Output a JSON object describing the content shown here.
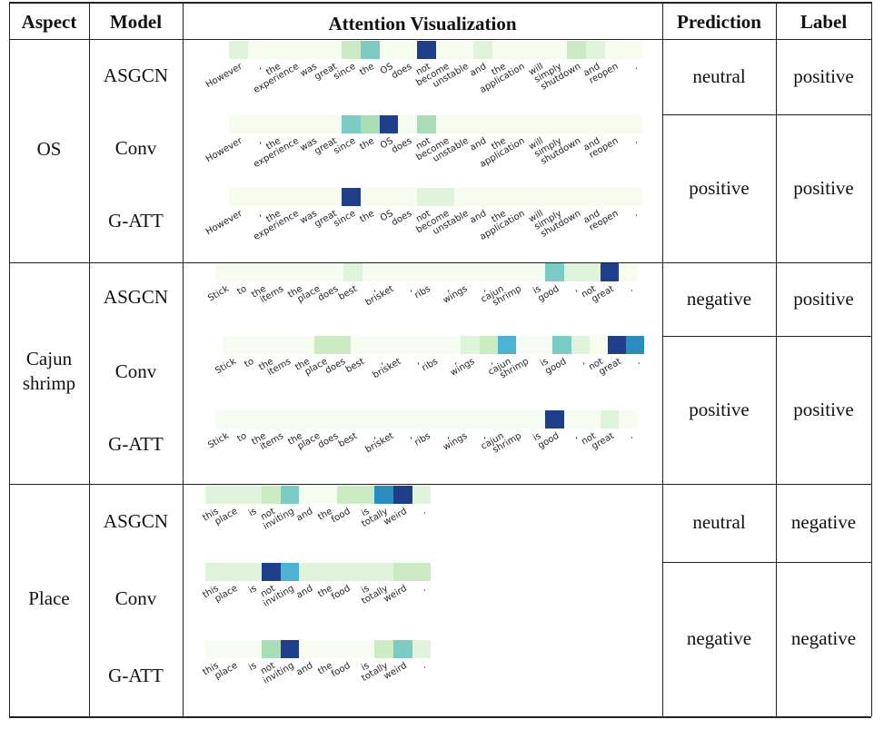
{
  "headers": {
    "aspect": "Aspect",
    "model": "Model",
    "attention": "Attention Visualization",
    "prediction": "Prediction",
    "label": "Label"
  },
  "colors": {
    "scale": [
      "#f7fcf0",
      "#e0f3db",
      "#ccebc5",
      "#a8ddb5",
      "#7bccc4",
      "#4eb3d3",
      "#2b8cbe",
      "#0868ac",
      "#1f3f8a"
    ]
  },
  "groups": [
    {
      "aspect": "OS",
      "tokens": [
        "However",
        ",",
        "the",
        "experience",
        "was",
        "great",
        "since",
        "the",
        "OS",
        "does",
        "not",
        "become",
        "unstable",
        "and",
        "the",
        "application",
        "will",
        "simply",
        "shutdown",
        "and",
        "reopen",
        "."
      ],
      "rows": [
        {
          "model": "ASGCN",
          "weights": [
            2,
            1,
            1,
            1,
            1,
            1,
            3,
            5,
            1,
            1,
            9,
            1,
            1,
            2,
            1,
            1,
            1,
            1,
            3,
            2,
            1,
            1
          ]
        },
        {
          "model": "Conv",
          "weights": [
            1,
            1,
            1,
            1,
            1,
            1,
            5,
            4,
            9,
            1,
            4,
            1,
            1,
            1,
            1,
            1,
            1,
            1,
            1,
            1,
            1,
            1
          ]
        },
        {
          "model": "G-ATT",
          "weights": [
            1,
            1,
            1,
            1,
            1,
            1,
            9,
            1,
            1,
            1,
            2,
            2,
            1,
            1,
            1,
            1,
            1,
            1,
            1,
            1,
            1,
            1
          ]
        }
      ],
      "predictions": [
        {
          "prediction": "neutral",
          "label": "positive",
          "span": 1
        },
        {
          "prediction": "positive",
          "label": "positive",
          "span": 2
        }
      ]
    },
    {
      "aspect": "Cajun shrimp",
      "tokens": [
        "Stick",
        "to",
        "the",
        "items",
        "the",
        "place",
        "does",
        "best",
        ",",
        "brisket",
        ",",
        "ribs",
        ",",
        "wings",
        ",",
        "cajun",
        "shrimp",
        "is",
        "good",
        ",",
        "not",
        "great",
        "."
      ],
      "rows": [
        {
          "model": "ASGCN",
          "weights": [
            1,
            1,
            1,
            1,
            1,
            1,
            1,
            2,
            1,
            1,
            1,
            1,
            1,
            1,
            1,
            1,
            1,
            1,
            5,
            2,
            2,
            9,
            1
          ]
        },
        {
          "model": "Conv",
          "weights": [
            1,
            1,
            1,
            1,
            1,
            3,
            3,
            1,
            1,
            1,
            1,
            1,
            1,
            2,
            3,
            6,
            1,
            1,
            5,
            2,
            1,
            9,
            7
          ]
        },
        {
          "model": "G-ATT",
          "weights": [
            1,
            1,
            1,
            1,
            1,
            1,
            1,
            1,
            1,
            1,
            1,
            1,
            1,
            1,
            1,
            1,
            1,
            1,
            9,
            1,
            1,
            2,
            1
          ]
        }
      ],
      "predictions": [
        {
          "prediction": "negative",
          "label": "positive",
          "span": 1
        },
        {
          "prediction": "positive",
          "label": "positive",
          "span": 2
        }
      ]
    },
    {
      "aspect": "Place",
      "tokens": [
        "this",
        "place",
        "is",
        "not",
        "inviting",
        "and",
        "the",
        "food",
        "is",
        "totally",
        "weird",
        "."
      ],
      "rows": [
        {
          "model": "ASGCN",
          "weights": [
            2,
            2,
            2,
            3,
            5,
            1,
            1,
            3,
            3,
            7,
            9,
            2
          ]
        },
        {
          "model": "Conv",
          "weights": [
            2,
            2,
            2,
            9,
            6,
            2,
            2,
            2,
            2,
            2,
            3,
            3
          ]
        },
        {
          "model": "G-ATT",
          "weights": [
            1,
            1,
            1,
            4,
            9,
            1,
            1,
            1,
            1,
            3,
            5,
            2
          ]
        }
      ],
      "predictions": [
        {
          "prediction": "neutral",
          "label": "negative",
          "span": 1
        },
        {
          "prediction": "negative",
          "label": "negative",
          "span": 2
        }
      ]
    }
  ]
}
